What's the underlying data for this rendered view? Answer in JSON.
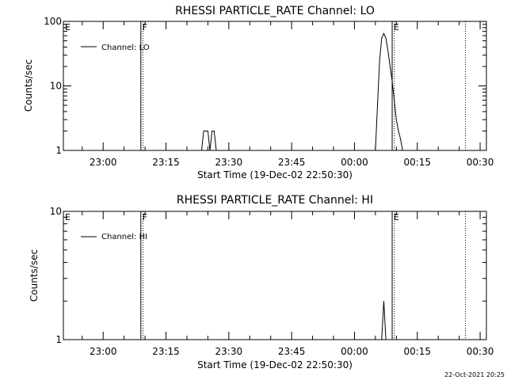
{
  "chart_data": [
    {
      "type": "line",
      "title": "RHESSI PARTICLE_RATE Channel: LO",
      "xlabel": "Start Time (19-Dec-02 22:50:30)",
      "ylabel": "Counts/sec",
      "yscale": "log",
      "ylim": [
        1,
        100
      ],
      "y_ticks": [
        1,
        10,
        100
      ],
      "y_tick_labels": [
        "1",
        "10",
        "100"
      ],
      "xlim": [
        "22:50:30",
        "00:31:30"
      ],
      "x_ticks": [
        "23:00",
        "23:15",
        "23:30",
        "23:45",
        "00:00",
        "00:15",
        "00:30"
      ],
      "legend": {
        "position": "top-left",
        "entries": [
          "Channel: LO"
        ]
      },
      "markers": [
        {
          "label": "E",
          "time": "22:50:30",
          "style": "none"
        },
        {
          "label": "F",
          "time": "23:09:00",
          "style": "solid"
        },
        {
          "label": "E",
          "time": "00:09:00",
          "style": "solid"
        }
      ],
      "dotted_lines": [
        "23:09:30",
        "00:09:30",
        "00:26:30"
      ],
      "series": [
        {
          "x": [
            "23:23:30",
            "23:24:00",
            "23:24:30",
            "23:25:00",
            "23:25:30",
            "23:26:00",
            "23:26:30",
            "23:27:00",
            "23:27:30",
            "00:05:00",
            "00:05:30",
            "00:06:00",
            "00:06:30",
            "00:07:00",
            "00:07:30",
            "00:08:00",
            "00:08:30",
            "00:09:00",
            "00:09:30",
            "00:10:00",
            "00:10:30",
            "00:11:00",
            "00:11:30",
            "00:12:00"
          ],
          "y": [
            1,
            2,
            2,
            2,
            1,
            2,
            2,
            1,
            1,
            1,
            5,
            25,
            55,
            65,
            55,
            35,
            20,
            12,
            6,
            3,
            2,
            1.5,
            1,
            1
          ]
        }
      ]
    },
    {
      "type": "line",
      "title": "RHESSI PARTICLE_RATE Channel: HI",
      "xlabel": "Start Time (19-Dec-02 22:50:30)",
      "ylabel": "Counts/sec",
      "yscale": "log",
      "ylim": [
        1,
        10
      ],
      "y_ticks": [
        1,
        10
      ],
      "y_tick_labels": [
        "1",
        "10"
      ],
      "xlim": [
        "22:50:30",
        "00:31:30"
      ],
      "x_ticks": [
        "23:00",
        "23:15",
        "23:30",
        "23:45",
        "00:00",
        "00:15",
        "00:30"
      ],
      "legend": {
        "position": "top-left",
        "entries": [
          "Channel: HI"
        ]
      },
      "markers": [
        {
          "label": "E",
          "time": "22:50:30",
          "style": "none"
        },
        {
          "label": "F",
          "time": "23:09:00",
          "style": "solid"
        },
        {
          "label": "E",
          "time": "00:09:00",
          "style": "solid"
        }
      ],
      "dotted_lines": [
        "23:09:30",
        "00:09:30",
        "00:26:30"
      ],
      "series": [
        {
          "x": [
            "00:06:30",
            "00:07:00",
            "00:07:30"
          ],
          "y": [
            1,
            2,
            1
          ]
        }
      ]
    }
  ],
  "footer": {
    "timestamp": "22-Oct-2021 20:25"
  }
}
